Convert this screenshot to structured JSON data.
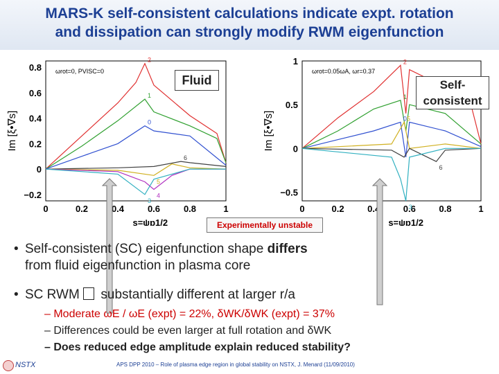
{
  "title_line1": "MARS-K self-consistent calculations indicate expt. rotation",
  "title_line2": "and dissipation can strongly modify RWM eigenfunction",
  "label_fluid": "Fluid",
  "label_sc_1": "Self-",
  "label_sc_2": "consistent",
  "unstable_label": "Experimentally unstable",
  "bullet1_1": "Self-consistent (SC) eigenfunction shape ",
  "bullet1_bold": "differs",
  "bullet1_2": "from fluid eigenfunction in plasma core",
  "bullet2_1": "SC RWM ",
  "bullet2_2": "substantially different at larger r/a",
  "sub1": "– Moderate ωE / ωE (expt) = 22%, δWK/δWK (expt) = 37%",
  "sub2": "– Differences could be even larger at full rotation and δWK",
  "sub3": "– Does reduced edge   amplitude explain reduced stability?",
  "footer_nstx": "NSTX",
  "footer_cite": "APS DPP 2010 – Role of plasma edge region in global stability on NSTX,  J. Menard  (11/09/2010)",
  "chart_data": [
    {
      "type": "line",
      "ylabel": "Im [ξ•∇s]",
      "xlabel": "s=ψp1/2",
      "xlim": [
        0,
        1
      ],
      "ylim": [
        -0.25,
        0.85
      ],
      "yticks": [
        "0.8",
        "0.6",
        "0.4",
        "0.2",
        "0",
        "−0.2"
      ],
      "xticks": [
        "0",
        "0.2",
        "0.4",
        "0.6",
        "0.8",
        "1"
      ],
      "annotation": "ωrot=0, PVISC=0",
      "mode_labels": [
        "2",
        "1",
        "0",
        "6",
        "5",
        "4",
        "3"
      ],
      "series": [
        {
          "name": "2",
          "color": "#e03030",
          "points": [
            [
              0,
              0
            ],
            [
              0.2,
              0.26
            ],
            [
              0.4,
              0.52
            ],
            [
              0.5,
              0.68
            ],
            [
              0.55,
              0.83
            ],
            [
              0.6,
              0.66
            ],
            [
              0.8,
              0.42
            ],
            [
              0.95,
              0.28
            ],
            [
              1,
              0.05
            ]
          ]
        },
        {
          "name": "1",
          "color": "#30a030",
          "points": [
            [
              0,
              0
            ],
            [
              0.2,
              0.18
            ],
            [
              0.4,
              0.38
            ],
            [
              0.55,
              0.55
            ],
            [
              0.6,
              0.45
            ],
            [
              0.8,
              0.34
            ],
            [
              0.95,
              0.24
            ],
            [
              1,
              0.05
            ]
          ]
        },
        {
          "name": "0",
          "color": "#3050d0",
          "points": [
            [
              0,
              0
            ],
            [
              0.2,
              0.1
            ],
            [
              0.4,
              0.2
            ],
            [
              0.55,
              0.34
            ],
            [
              0.6,
              0.3
            ],
            [
              0.8,
              0.26
            ],
            [
              1,
              0.03
            ]
          ]
        },
        {
          "name": "6",
          "color": "#404040",
          "points": [
            [
              0,
              0
            ],
            [
              0.4,
              0.01
            ],
            [
              0.6,
              0.02
            ],
            [
              0.75,
              0.06
            ],
            [
              0.8,
              0.05
            ],
            [
              1,
              0.02
            ]
          ]
        },
        {
          "name": "5",
          "color": "#d0b020",
          "points": [
            [
              0,
              0
            ],
            [
              0.4,
              -0.01
            ],
            [
              0.6,
              -0.05
            ],
            [
              0.7,
              0.04
            ],
            [
              0.8,
              0.01
            ],
            [
              1,
              0
            ]
          ]
        },
        {
          "name": "4",
          "color": "#b030c0",
          "points": [
            [
              0,
              0
            ],
            [
              0.4,
              -0.02
            ],
            [
              0.55,
              -0.1
            ],
            [
              0.6,
              -0.16
            ],
            [
              0.7,
              -0.05
            ],
            [
              0.8,
              0.0
            ],
            [
              1,
              0
            ]
          ]
        },
        {
          "name": "3",
          "color": "#30b0c0",
          "points": [
            [
              0,
              0
            ],
            [
              0.4,
              -0.04
            ],
            [
              0.55,
              -0.2
            ],
            [
              0.6,
              -0.08
            ],
            [
              0.8,
              0.0
            ],
            [
              1,
              0
            ]
          ]
        }
      ]
    },
    {
      "type": "line",
      "ylabel": "Im [ξ•∇s]",
      "xlabel": "s=ψp1/2",
      "xlim": [
        0,
        1
      ],
      "ylim": [
        -0.6,
        1.0
      ],
      "yticks": [
        "1",
        "0.5",
        "0",
        "−0.5"
      ],
      "xticks": [
        "0",
        "0.2",
        "0.4",
        "0.6",
        "0.8",
        "1"
      ],
      "annotation": "ωrot=0.05ωA, ωr=0.37",
      "mode_labels": [
        "2",
        "1",
        "0",
        "5",
        "6",
        "3"
      ],
      "series": [
        {
          "name": "2",
          "color": "#e03030",
          "points": [
            [
              0,
              0
            ],
            [
              0.2,
              0.35
            ],
            [
              0.4,
              0.65
            ],
            [
              0.5,
              0.85
            ],
            [
              0.55,
              0.95
            ],
            [
              0.58,
              0.4
            ],
            [
              0.6,
              0.9
            ],
            [
              0.8,
              0.7
            ],
            [
              0.95,
              0.45
            ],
            [
              1,
              0.05
            ]
          ]
        },
        {
          "name": "1",
          "color": "#30a030",
          "points": [
            [
              0,
              0
            ],
            [
              0.2,
              0.2
            ],
            [
              0.4,
              0.45
            ],
            [
              0.55,
              0.55
            ],
            [
              0.58,
              0.2
            ],
            [
              0.6,
              0.5
            ],
            [
              0.8,
              0.4
            ],
            [
              1,
              0.05
            ]
          ]
        },
        {
          "name": "0",
          "color": "#3050d0",
          "points": [
            [
              0,
              0
            ],
            [
              0.2,
              0.1
            ],
            [
              0.4,
              0.2
            ],
            [
              0.55,
              0.3
            ],
            [
              0.58,
              -0.1
            ],
            [
              0.6,
              0.3
            ],
            [
              0.8,
              0.2
            ],
            [
              1,
              0.02
            ]
          ]
        },
        {
          "name": "5",
          "color": "#d0b020",
          "points": [
            [
              0,
              0
            ],
            [
              0.5,
              0.05
            ],
            [
              0.57,
              0.3
            ],
            [
              0.6,
              0.0
            ],
            [
              0.8,
              0.05
            ],
            [
              1,
              0
            ]
          ]
        },
        {
          "name": "6",
          "color": "#404040",
          "points": [
            [
              0,
              0
            ],
            [
              0.5,
              -0.02
            ],
            [
              0.57,
              -0.1
            ],
            [
              0.6,
              0.0
            ],
            [
              0.75,
              -0.15
            ],
            [
              0.8,
              -0.02
            ],
            [
              1,
              0
            ]
          ]
        },
        {
          "name": "3",
          "color": "#30b0c0",
          "points": [
            [
              0,
              0
            ],
            [
              0.5,
              -0.1
            ],
            [
              0.55,
              -0.35
            ],
            [
              0.58,
              -0.6
            ],
            [
              0.6,
              -0.1
            ],
            [
              0.8,
              0
            ],
            [
              1,
              0
            ]
          ]
        }
      ]
    }
  ]
}
